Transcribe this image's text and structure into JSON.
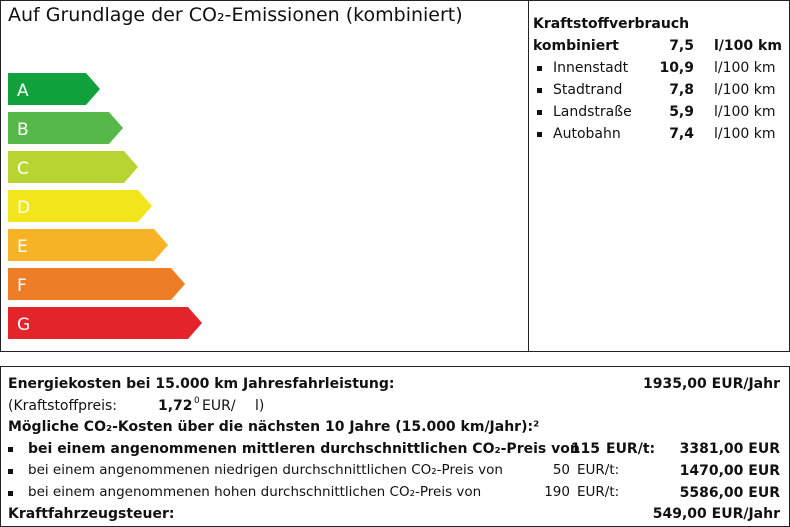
{
  "label": {
    "title": "Auf Grundlage der CO₂-Emissionen (kombiniert)",
    "classes": [
      "A",
      "B",
      "C",
      "D",
      "E",
      "F",
      "G"
    ]
  },
  "consumption": {
    "heading": "Kraftstoffverbrauch",
    "combined": {
      "label": "kombiniert",
      "value": "7,5",
      "unit": "l/100 km"
    },
    "rows": [
      {
        "label": "Innenstadt",
        "value": "10,9",
        "unit": "l/100 km"
      },
      {
        "label": "Stadtrand",
        "value": "7,8",
        "unit": "l/100 km"
      },
      {
        "label": "Landstraße",
        "value": "5,9",
        "unit": "l/100 km"
      },
      {
        "label": "Autobahn",
        "value": "7,4",
        "unit": "l/100 km"
      }
    ]
  },
  "costs": {
    "energy": {
      "label": "Energiekosten bei 15.000 km Jahresfahrleistung:",
      "value": "1935,00 EUR/Jahr"
    },
    "fuel_price": {
      "label": "(Kraftstoffpreis:",
      "value": "1,72",
      "sup": "0",
      "unit": "EUR/",
      "unit2": "l)"
    },
    "co2_heading": "Mögliche CO₂-Kosten über die nächsten 10 Jahre (15.000 km/Jahr):²",
    "co2_rows": [
      {
        "label": "bei einem angenommenen mittleren durchschnittlichen CO₂-Preis von",
        "price": "115",
        "unit": "EUR/t:",
        "value": "3381,00 EUR"
      },
      {
        "label": "bei einem angenommenen niedrigen durchschnittlichen CO₂-Preis von",
        "price": "50",
        "unit": "EUR/t:",
        "value": "1470,00 EUR"
      },
      {
        "label": "bei einem angenommenen hohen durchschnittlichen CO₂-Preis von",
        "price": "190",
        "unit": "EUR/t:",
        "value": "5586,00 EUR"
      }
    ],
    "tax": {
      "label": "Kraftfahrzeugsteuer:",
      "value": "549,00 EUR/Jahr"
    }
  }
}
